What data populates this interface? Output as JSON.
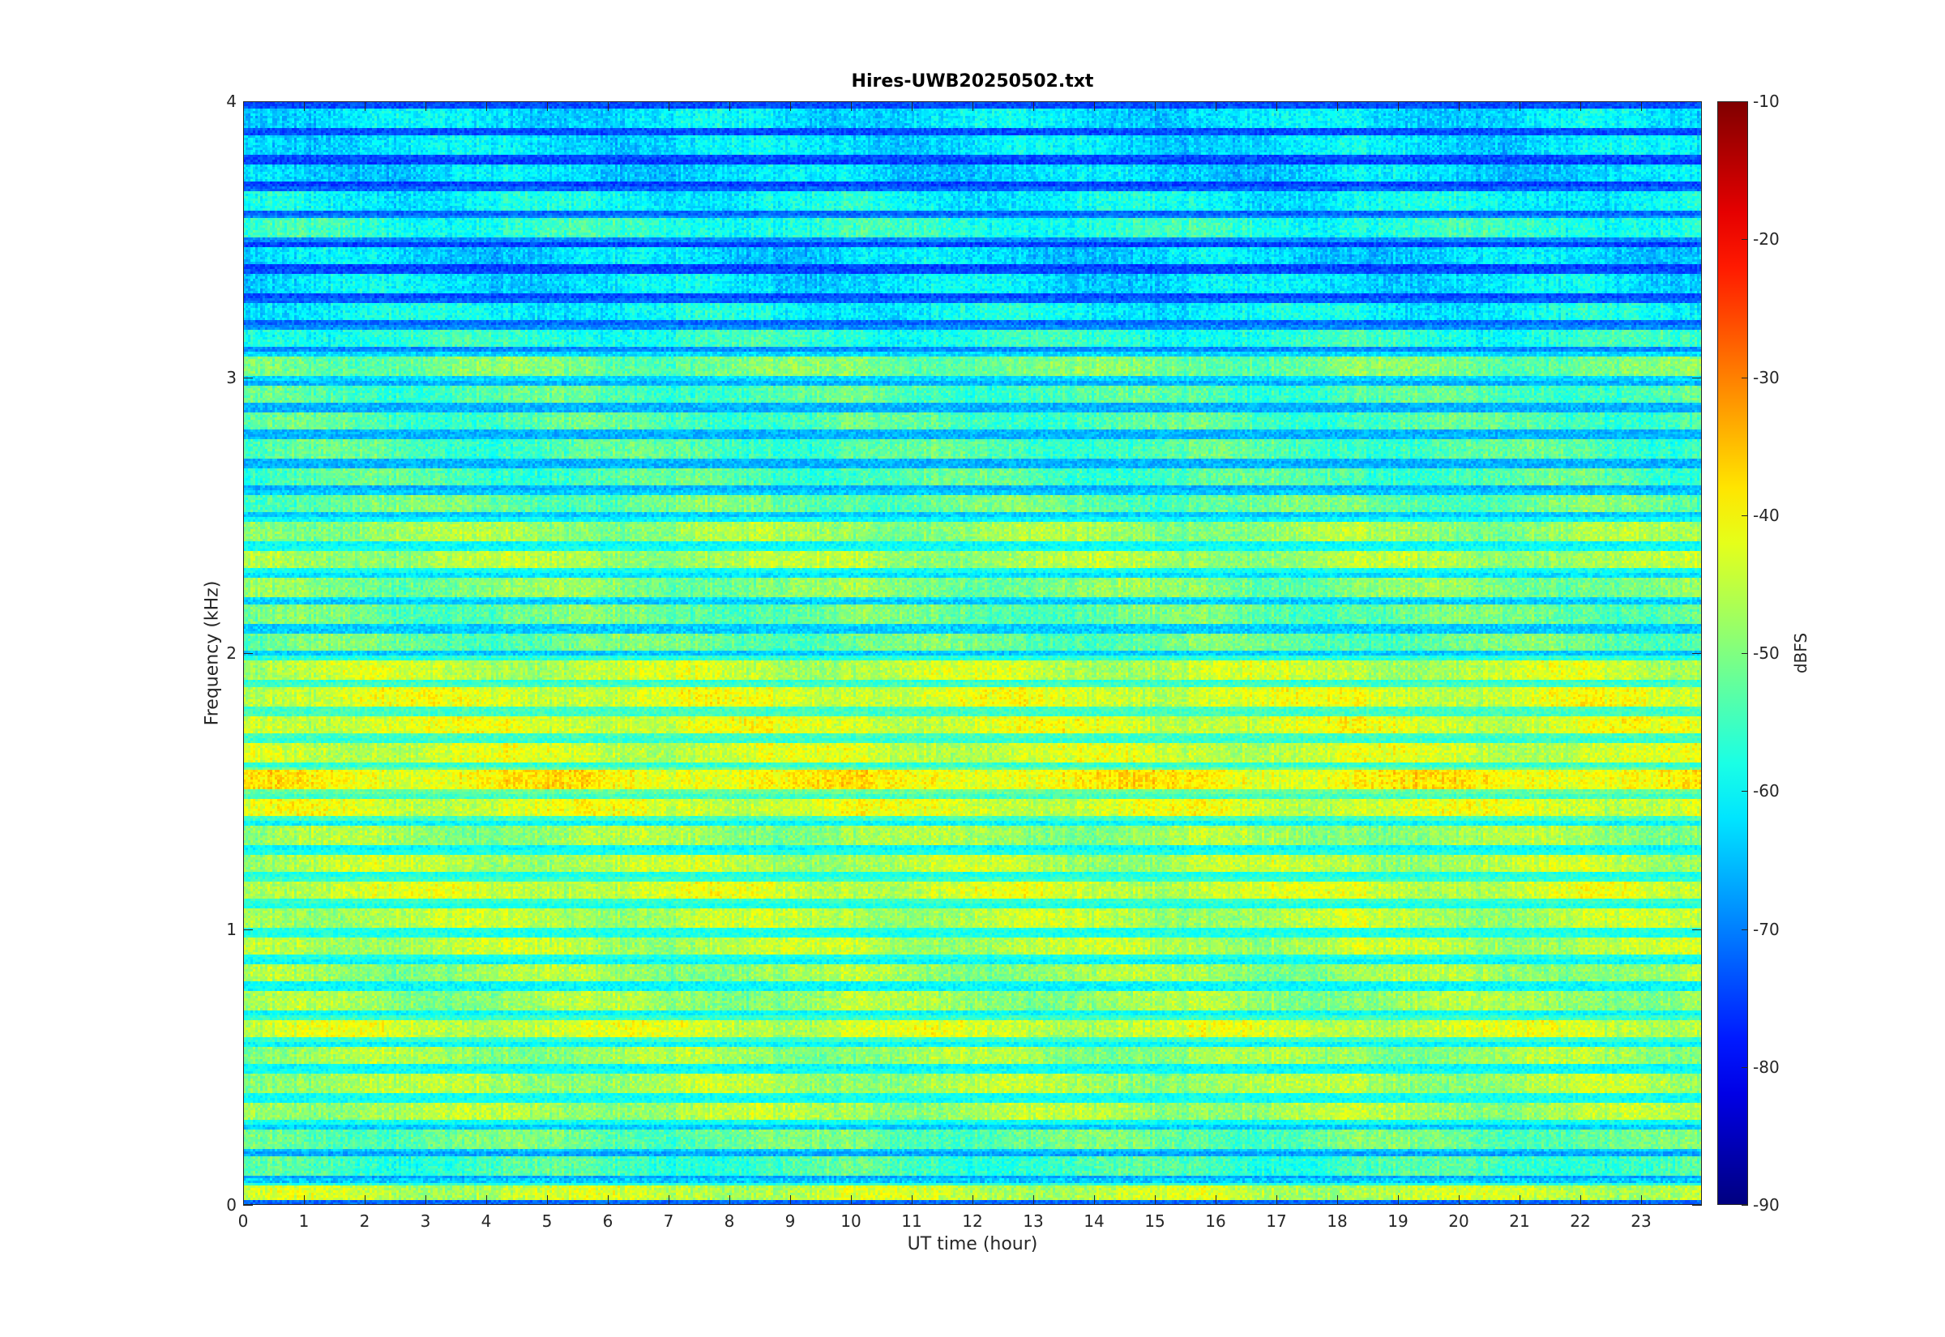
{
  "chart_data": {
    "type": "heatmap",
    "title": "Hires-UWB20250502.txt",
    "xlabel": "UT time (hour)",
    "ylabel": "Frequency (kHz)",
    "colorbar_label": "dBFS",
    "colormap": "jet",
    "xlim": [
      0,
      24
    ],
    "ylim": [
      0,
      4
    ],
    "clim": [
      -90,
      -10
    ],
    "x_ticks": [
      0,
      1,
      2,
      3,
      4,
      5,
      6,
      7,
      8,
      9,
      10,
      11,
      12,
      13,
      14,
      15,
      16,
      17,
      18,
      19,
      20,
      21,
      22,
      23
    ],
    "y_ticks": [
      0,
      1,
      2,
      3,
      4
    ],
    "colorbar_ticks": [
      -10,
      -20,
      -30,
      -40,
      -50,
      -60,
      -70,
      -80,
      -90
    ],
    "grid": false,
    "frequency_bands_khz": [
      {
        "f": 0.04,
        "level": -45
      },
      {
        "f": 0.14,
        "level": -55
      },
      {
        "f": 0.24,
        "level": -52
      },
      {
        "f": 0.34,
        "level": -47
      },
      {
        "f": 0.44,
        "level": -47
      },
      {
        "f": 0.54,
        "level": -48
      },
      {
        "f": 0.64,
        "level": -44
      },
      {
        "f": 0.74,
        "level": -48
      },
      {
        "f": 0.84,
        "level": -48
      },
      {
        "f": 0.94,
        "level": -46
      },
      {
        "f": 1.04,
        "level": -46
      },
      {
        "f": 1.14,
        "level": -44
      },
      {
        "f": 1.24,
        "level": -46
      },
      {
        "f": 1.34,
        "level": -48
      },
      {
        "f": 1.44,
        "level": -43
      },
      {
        "f": 1.54,
        "level": -40
      },
      {
        "f": 1.64,
        "level": -44
      },
      {
        "f": 1.74,
        "level": -43
      },
      {
        "f": 1.84,
        "level": -43
      },
      {
        "f": 1.94,
        "level": -45
      },
      {
        "f": 2.04,
        "level": -52
      },
      {
        "f": 2.14,
        "level": -52
      },
      {
        "f": 2.24,
        "level": -50
      },
      {
        "f": 2.34,
        "level": -47
      },
      {
        "f": 2.44,
        "level": -48
      },
      {
        "f": 2.54,
        "level": -52
      },
      {
        "f": 2.64,
        "level": -54
      },
      {
        "f": 2.74,
        "level": -54
      },
      {
        "f": 2.84,
        "level": -54
      },
      {
        "f": 2.94,
        "level": -54
      },
      {
        "f": 3.04,
        "level": -51
      },
      {
        "f": 3.14,
        "level": -57
      },
      {
        "f": 3.24,
        "level": -60
      },
      {
        "f": 3.34,
        "level": -62
      },
      {
        "f": 3.44,
        "level": -63
      },
      {
        "f": 3.54,
        "level": -57
      },
      {
        "f": 3.64,
        "level": -60
      },
      {
        "f": 3.74,
        "level": -63
      },
      {
        "f": 3.84,
        "level": -62
      },
      {
        "f": 3.94,
        "level": -62
      }
    ]
  }
}
